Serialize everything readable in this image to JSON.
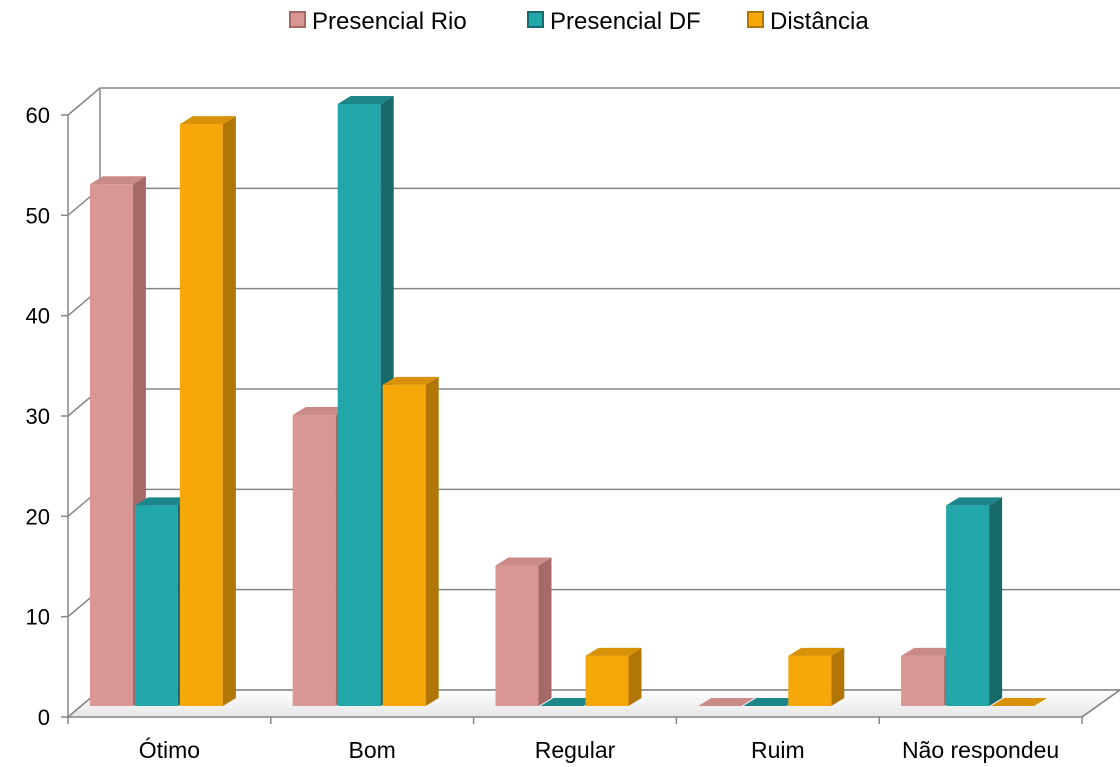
{
  "chart_data": {
    "type": "bar",
    "title": "",
    "xlabel": "",
    "ylabel": "",
    "categories": [
      "Ótimo",
      "Bom",
      "Regular",
      "Ruim",
      "Não respondeu"
    ],
    "series": [
      {
        "name": "Presencial Rio",
        "values": [
          52,
          29,
          14,
          0,
          5
        ],
        "color": "#d99694",
        "side_color": "#a56a68",
        "top_color": "#c98a88"
      },
      {
        "name": "Presencial DF",
        "values": [
          20,
          60,
          0,
          0,
          20
        ],
        "color": "#23a6aa",
        "side_color": "#17696c",
        "top_color": "#1c868a"
      },
      {
        "name": "Distância",
        "values": [
          58,
          32,
          5,
          5,
          0
        ],
        "color": "#f6a70a",
        "side_color": "#b27606",
        "top_color": "#d99208"
      }
    ],
    "ylim": [
      0,
      60
    ],
    "yticks": [
      0,
      10,
      20,
      30,
      40,
      50,
      60
    ],
    "grid": true,
    "style": "3d-clustered-column",
    "legend_position": "top"
  }
}
